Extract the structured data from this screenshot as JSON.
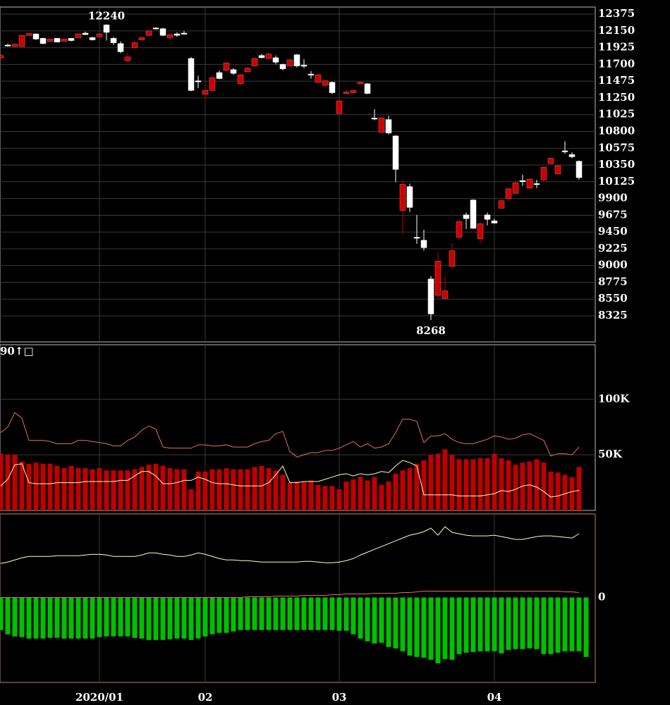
{
  "chart_data": [
    {
      "type": "candlestick",
      "categories": [
        null,
        null,
        null,
        null,
        null,
        null,
        null,
        null,
        null,
        null,
        null,
        null,
        null,
        null,
        "2020/01",
        null,
        null,
        null,
        null,
        null,
        null,
        null,
        null,
        null,
        null,
        null,
        null,
        null,
        null,
        "02",
        null,
        null,
        null,
        null,
        null,
        null,
        null,
        null,
        null,
        null,
        null,
        null,
        null,
        null,
        null,
        null,
        null,
        null,
        "03",
        null,
        null,
        null,
        null,
        null,
        null,
        null,
        null,
        null,
        null,
        null,
        null,
        null,
        null,
        null,
        null,
        null,
        null,
        null,
        null,
        null,
        "04",
        null,
        null,
        null,
        null,
        null,
        null,
        null,
        null,
        null,
        null,
        null,
        null
      ],
      "open": [
        11790,
        11960,
        11940,
        11940,
        12090,
        12110,
        12050,
        12010,
        12050,
        12010,
        12050,
        12060,
        12120,
        12060,
        12070,
        12230,
        12050,
        11980,
        11750,
        11930,
        12030,
        12090,
        12190,
        12180,
        12060,
        12110,
        12120,
        11780,
        11480,
        11300,
        11350,
        11590,
        11620,
        11630,
        11440,
        11600,
        11680,
        11820,
        11780,
        11790,
        11700,
        11680,
        11830,
        11690,
        11570,
        11460,
        11420,
        11460,
        11040,
        11310,
        11320,
        11440,
        11440,
        10980,
        10790,
        10960,
        10740,
        9740,
        10060,
        9380,
        9340,
        8820,
        8600,
        8560,
        8990,
        9380,
        9680,
        9880,
        9360,
        9680,
        9600,
        9770,
        9900,
        9970,
        10140,
        10040,
        10100,
        10150,
        10370,
        10230,
        10540,
        10490,
        10400
      ],
      "high": [
        11830,
        11975,
        11985,
        12100,
        12125,
        12115,
        12060,
        12045,
        12055,
        12045,
        12055,
        12115,
        12140,
        12070,
        12115,
        12240,
        12070,
        12010,
        11860,
        12020,
        12070,
        12160,
        12199,
        12190,
        12110,
        12130,
        12150,
        11800,
        11550,
        11420,
        11560,
        11620,
        11730,
        11650,
        11580,
        11660,
        11790,
        11840,
        11860,
        11820,
        11710,
        11780,
        11840,
        11770,
        11610,
        11570,
        11500,
        11470,
        11220,
        11360,
        11360,
        11480,
        11450,
        11100,
        11000,
        11010,
        10750,
        10150,
        10100,
        9680,
        9480,
        8860,
        9180,
        8850,
        9300,
        9600,
        9710,
        9890,
        9580,
        9710,
        9630,
        9880,
        10040,
        10150,
        10220,
        10170,
        10150,
        10330,
        10450,
        10350,
        10670,
        10520,
        10410
      ],
      "low": [
        11780,
        11940,
        11935,
        11930,
        12080,
        12030,
        11970,
        12000,
        11995,
        12005,
        12010,
        12055,
        12095,
        12020,
        12065,
        12020,
        11960,
        11850,
        11720,
        11900,
        12020,
        12080,
        12170,
        12080,
        12020,
        12070,
        12100,
        11340,
        11380,
        11200,
        11340,
        11500,
        11600,
        11560,
        11420,
        11590,
        11660,
        11780,
        11770,
        11700,
        11620,
        11660,
        11660,
        11650,
        11510,
        11440,
        11400,
        11300,
        11030,
        11290,
        11300,
        11430,
        11300,
        10950,
        10780,
        10760,
        10120,
        9420,
        9720,
        9290,
        9200,
        8268,
        8560,
        8540,
        8970,
        9350,
        9490,
        9490,
        9300,
        9540,
        9560,
        9760,
        9880,
        9960,
        10070,
        10020,
        10040,
        10130,
        10360,
        10220,
        10500,
        10440,
        10150
      ],
      "close": [
        11820,
        11950,
        11970,
        12090,
        12115,
        12040,
        11980,
        12040,
        12000,
        12040,
        12020,
        12110,
        12100,
        12030,
        12110,
        12130,
        11990,
        11870,
        11800,
        11990,
        12060,
        12150,
        12185,
        12090,
        12100,
        12090,
        12110,
        11350,
        11470,
        11350,
        11520,
        11510,
        11720,
        11580,
        11560,
        11650,
        11780,
        11790,
        11840,
        11730,
        11640,
        11760,
        11680,
        11680,
        11560,
        11560,
        11480,
        11320,
        11210,
        11330,
        11350,
        11460,
        11310,
        10970,
        10980,
        10780,
        10290,
        10090,
        9780,
        9370,
        9240,
        8350,
        9060,
        8660,
        9200,
        9590,
        9630,
        9500,
        9560,
        9620,
        9570,
        9870,
        10030,
        10110,
        10130,
        10160,
        10090,
        10320,
        10440,
        10340,
        10530,
        10460,
        10180
      ],
      "up_color": "#c80000",
      "down_color": "#ffffff",
      "first_label_color": "#ffff60",
      "ylim": [
        7975,
        12470
      ],
      "yticks": [
        12375,
        12150,
        11925,
        11700,
        11475,
        11250,
        11025,
        10800,
        10575,
        10350,
        10125,
        9900,
        9675,
        9450,
        9225,
        9000,
        8775,
        8550,
        8325
      ],
      "grid": true
    },
    {
      "type": "bar",
      "annotation": "90↑□",
      "annotation_color": "#ff40ff",
      "color": "#c00000",
      "values": [
        51000,
        50000,
        50000,
        44000,
        42000,
        43000,
        42000,
        42000,
        40000,
        38000,
        40000,
        38000,
        38000,
        37000,
        38000,
        36000,
        36000,
        36000,
        36000,
        37000,
        39000,
        41000,
        42000,
        40000,
        38000,
        37000,
        37000,
        19000,
        35000,
        35000,
        37000,
        37000,
        38000,
        37000,
        37000,
        37000,
        39000,
        40000,
        38000,
        36000,
        32000,
        25000,
        26000,
        26000,
        27000,
        23000,
        22000,
        22000,
        19000,
        26000,
        28000,
        30000,
        27000,
        30000,
        23000,
        26000,
        33000,
        36000,
        38000,
        42000,
        45000,
        50000,
        51000,
        55000,
        50000,
        46000,
        46000,
        46000,
        47000,
        47000,
        51000,
        47000,
        45000,
        41000,
        43000,
        44000,
        46000,
        43000,
        35000,
        34000,
        32000,
        30000,
        39000
      ],
      "lines": [
        {
          "color": "#e07060",
          "values": [
            70000,
            75000,
            88000,
            83000,
            63000,
            63000,
            63000,
            62000,
            60000,
            60000,
            60000,
            63000,
            63000,
            62000,
            61000,
            60000,
            58000,
            58000,
            63000,
            66000,
            72000,
            76000,
            73000,
            57000,
            56000,
            56000,
            56000,
            56000,
            59000,
            59000,
            58000,
            58000,
            59000,
            57000,
            57000,
            57000,
            60000,
            62000,
            63000,
            69000,
            71000,
            53000,
            48000,
            50000,
            52000,
            52000,
            54000,
            54000,
            56000,
            59000,
            62000,
            57000,
            60000,
            56000,
            57000,
            60000,
            70000,
            82000,
            82000,
            80000,
            61000,
            67000,
            67000,
            69000,
            64000,
            61000,
            60000,
            60000,
            62000,
            64000,
            67000,
            66000,
            64000,
            65000,
            68000,
            69000,
            66000,
            63000,
            49000,
            51000,
            51000,
            50000,
            57000
          ]
        },
        {
          "color": "#ffffc0",
          "values": [
            22000,
            28000,
            41000,
            42000,
            25000,
            24000,
            24000,
            24000,
            25000,
            25000,
            25000,
            25000,
            26000,
            26000,
            26000,
            26000,
            26000,
            27000,
            27000,
            31000,
            35000,
            35000,
            31000,
            24000,
            24000,
            25000,
            27000,
            27000,
            30000,
            28000,
            25000,
            24000,
            24000,
            23000,
            22000,
            22000,
            22000,
            22000,
            25000,
            32000,
            40000,
            25000,
            25000,
            26000,
            26000,
            26000,
            28000,
            30000,
            32000,
            33000,
            31000,
            33000,
            32000,
            33000,
            35000,
            34000,
            40000,
            45000,
            43000,
            40000,
            14000,
            14000,
            14000,
            14000,
            14000,
            13000,
            13000,
            13000,
            13000,
            14000,
            15000,
            18000,
            17000,
            19000,
            22000,
            23000,
            21000,
            17000,
            12000,
            13000,
            15000,
            17000,
            18000
          ]
        }
      ],
      "ylim": [
        0,
        149000
      ],
      "yticks": [
        {
          "value": 50000,
          "label": "50K"
        },
        {
          "value": 100000,
          "label": "100K"
        }
      ],
      "grid": true
    },
    {
      "type": "bar",
      "color": "#00c000",
      "values": [
        -46,
        -52,
        -55,
        -56,
        -58,
        -58,
        -58,
        -57,
        -57,
        -58,
        -58,
        -58,
        -58,
        -58,
        -56,
        -55,
        -55,
        -55,
        -55,
        -57,
        -58,
        -60,
        -60,
        -60,
        -59,
        -58,
        -58,
        -60,
        -58,
        -55,
        -52,
        -50,
        -50,
        -48,
        -46,
        -46,
        -46,
        -46,
        -46,
        -46,
        -46,
        -46,
        -46,
        -46,
        -46,
        -46,
        -46,
        -46,
        -47,
        -47,
        -52,
        -58,
        -62,
        -65,
        -64,
        -70,
        -72,
        -76,
        -82,
        -84,
        -85,
        -88,
        -93,
        -87,
        -88,
        -80,
        -78,
        -77,
        -76,
        -76,
        -76,
        -79,
        -74,
        -73,
        -73,
        -72,
        -73,
        -80,
        -80,
        -78,
        -76,
        -76,
        -76,
        -84
      ],
      "lines": [
        {
          "color": "#ffffc0",
          "values": [
            48,
            50,
            53,
            56,
            58,
            58,
            58,
            58,
            59,
            59,
            59,
            59,
            60,
            61,
            61,
            60,
            58,
            58,
            58,
            58,
            60,
            63,
            63,
            61,
            60,
            58,
            58,
            60,
            63,
            61,
            58,
            55,
            53,
            53,
            52,
            52,
            51,
            50,
            50,
            50,
            50,
            50,
            50,
            51,
            51,
            50,
            49,
            49,
            50,
            52,
            55,
            60,
            64,
            68,
            72,
            76,
            80,
            84,
            88,
            90,
            93,
            98,
            88,
            100,
            92,
            90,
            88,
            87,
            87,
            87,
            88,
            86,
            84,
            82,
            82,
            84,
            86,
            87,
            87,
            86,
            85,
            84,
            90
          ]
        },
        {
          "color": "#e07060",
          "values": [
            0,
            0,
            0,
            0,
            0,
            0,
            0,
            0,
            0,
            0,
            0,
            0,
            0,
            0,
            0,
            0,
            0,
            0,
            0,
            0,
            0,
            0,
            0,
            0,
            0,
            0,
            0,
            0,
            0,
            0,
            0,
            0,
            0,
            0,
            0,
            1,
            1,
            1,
            1,
            2,
            2,
            2,
            2,
            3,
            3,
            3,
            3,
            4,
            4,
            5,
            5,
            5,
            5,
            6,
            6,
            6,
            6,
            7,
            7,
            8,
            9,
            9,
            9,
            9,
            9,
            9,
            9,
            9,
            9,
            9,
            9,
            9,
            9,
            9,
            9,
            9,
            9,
            9,
            9,
            9,
            8,
            8,
            7
          ]
        }
      ],
      "ylim": [
        -120,
        118
      ],
      "yticks": [
        0
      ],
      "grid": false
    }
  ]
}
